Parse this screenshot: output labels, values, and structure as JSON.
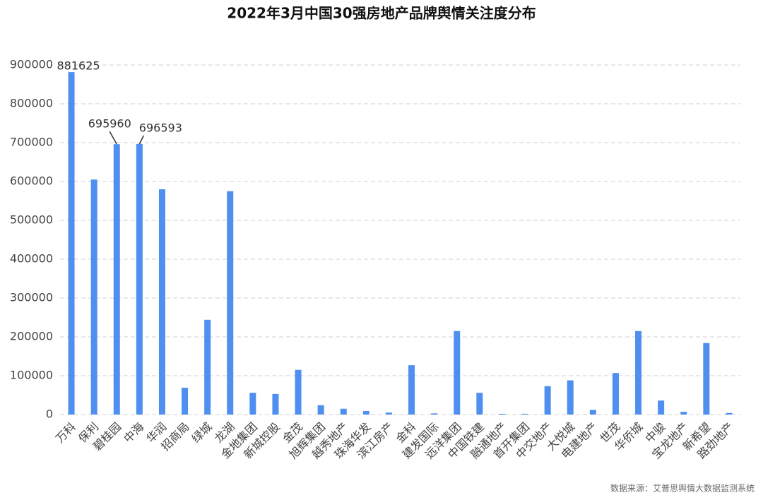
{
  "chart_data": {
    "type": "bar",
    "title": "2022年3月中国30强房地产品牌舆情关注度分布",
    "categories": [
      "万科",
      "保利",
      "碧桂园",
      "中海",
      "华润",
      "招商局",
      "绿城",
      "龙湖",
      "金地集团",
      "新城控股",
      "金茂",
      "旭辉集团",
      "越秀地产",
      "珠海华发",
      "滨江房产",
      "金科",
      "建发国际",
      "远洋集团",
      "中国铁建",
      "融通地产",
      "首开集团",
      "中交地产",
      "大悦城",
      "电建地产",
      "世茂",
      "华侨城",
      "中骏",
      "宝龙地产",
      "新希望",
      "路劲地产"
    ],
    "values": [
      881625,
      605000,
      695960,
      696593,
      580000,
      69000,
      244000,
      575000,
      56000,
      53000,
      115000,
      24000,
      15000,
      9000,
      5000,
      127000,
      3000,
      215000,
      56000,
      2000,
      2000,
      73000,
      88000,
      12000,
      107000,
      215000,
      36000,
      7000,
      184000,
      4000
    ],
    "value_labels": [
      "881625",
      null,
      "695960",
      "696593",
      null,
      null,
      null,
      null,
      null,
      null,
      null,
      null,
      null,
      null,
      null,
      null,
      null,
      null,
      null,
      null,
      null,
      null,
      null,
      null,
      null,
      null,
      null,
      null,
      null,
      null
    ],
    "color": "#4e8ff0",
    "ylim": [
      0,
      900000
    ],
    "yticks": [
      0,
      100000,
      200000,
      300000,
      400000,
      500000,
      600000,
      700000,
      800000,
      900000
    ],
    "grid": true,
    "source": "数据来源：艾普思舆情大数据监测系统"
  }
}
